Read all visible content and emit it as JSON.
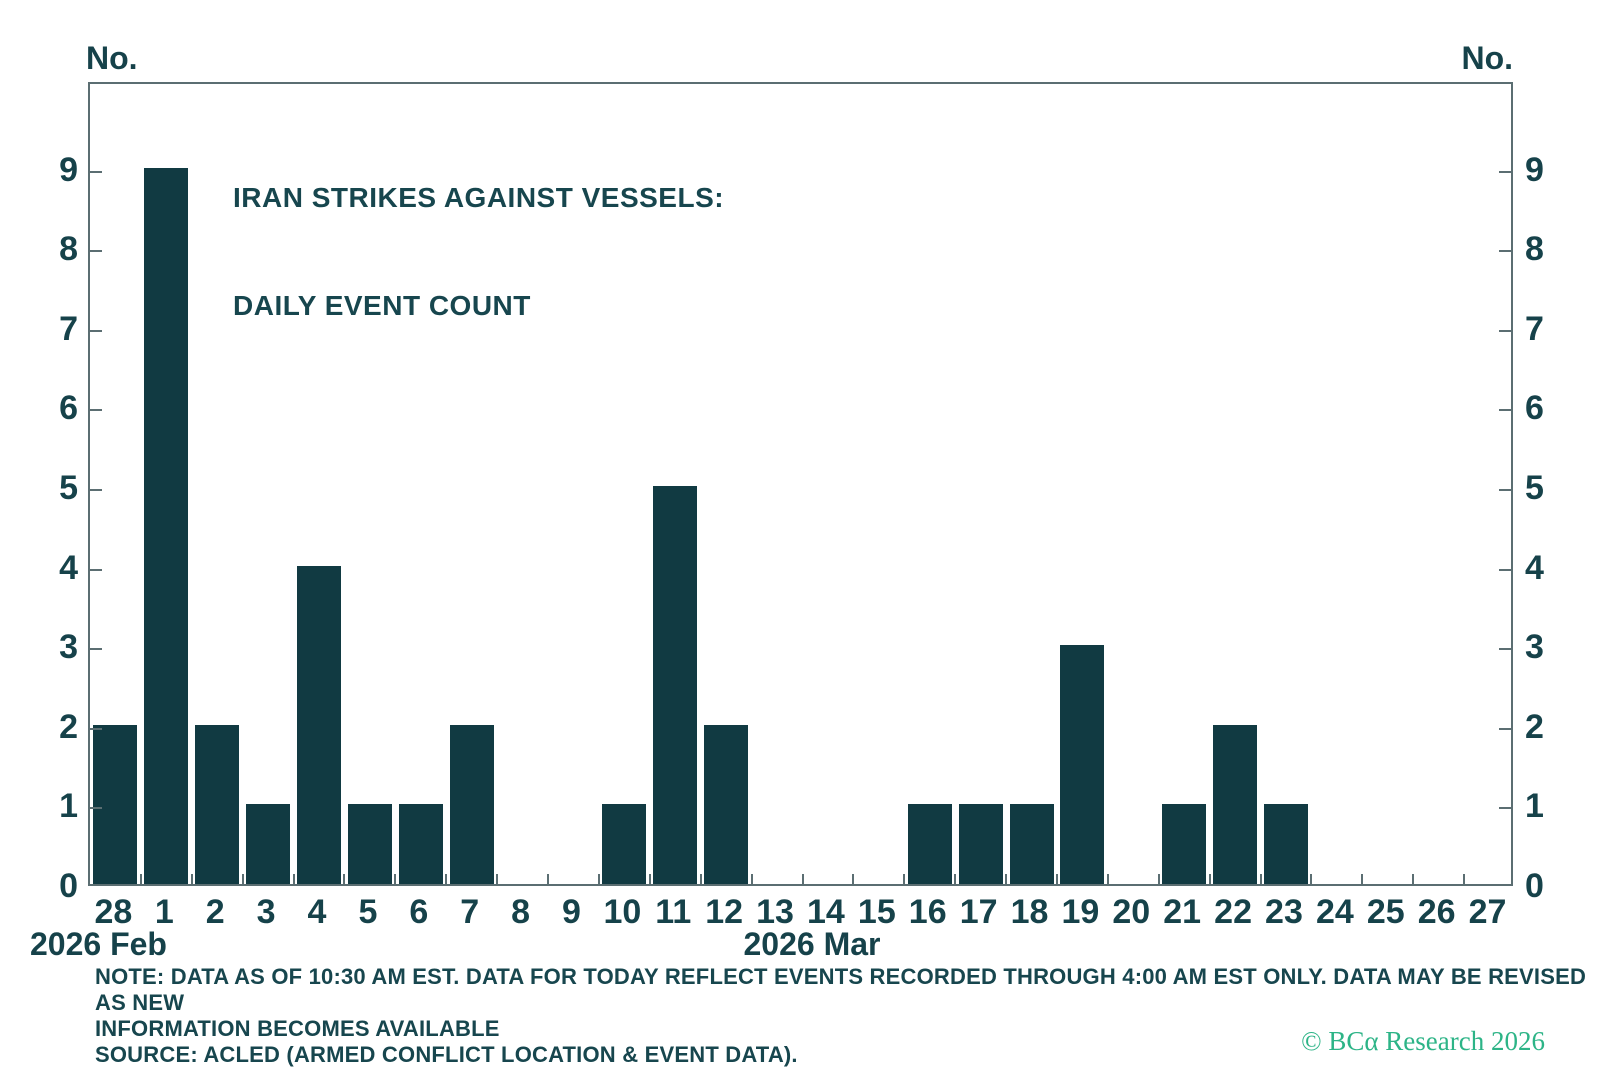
{
  "colors": {
    "bar": "#113a42",
    "text": "#16424a",
    "axis": "#5b6e72",
    "brand_green": "#2db487",
    "background": "#ffffff"
  },
  "chart_data": {
    "type": "bar",
    "title_lines": [
      "IRAN STRIKES AGAINST VESSELS:",
      "DAILY EVENT COUNT"
    ],
    "y_axis_label_left": "No.",
    "y_axis_label_right": "No.",
    "categories": [
      "28",
      "1",
      "2",
      "3",
      "4",
      "5",
      "6",
      "7",
      "8",
      "9",
      "10",
      "11",
      "12",
      "13",
      "14",
      "15",
      "16",
      "17",
      "18",
      "19",
      "20",
      "21",
      "22",
      "23",
      "24",
      "25",
      "26",
      "27"
    ],
    "values": [
      2,
      9,
      2,
      1,
      4,
      1,
      1,
      2,
      0,
      0,
      1,
      5,
      2,
      0,
      0,
      0,
      1,
      1,
      1,
      3,
      0,
      1,
      2,
      1,
      0,
      0,
      0,
      0
    ],
    "x_month_labels": [
      {
        "text": "2026 Feb"
      },
      {
        "text": "2026 Mar"
      }
    ],
    "y_ticks": [
      0,
      1,
      2,
      3,
      4,
      5,
      6,
      7,
      8,
      9
    ],
    "ylim": [
      0,
      10.1
    ],
    "grid": false,
    "legend": "none",
    "bar_color": "#113a42"
  },
  "footnote": {
    "note_lines": [
      "NOTE: DATA AS OF 10:30 AM EST. DATA FOR TODAY REFLECT EVENTS RECORDED THROUGH 4:00 AM EST ONLY. DATA MAY BE REVISED AS NEW",
      "INFORMATION BECOMES AVAILABLE",
      "SOURCE: ACLED (ARMED CONFLICT LOCATION & EVENT DATA)."
    ]
  },
  "copyright": "© BCα Research 2026"
}
